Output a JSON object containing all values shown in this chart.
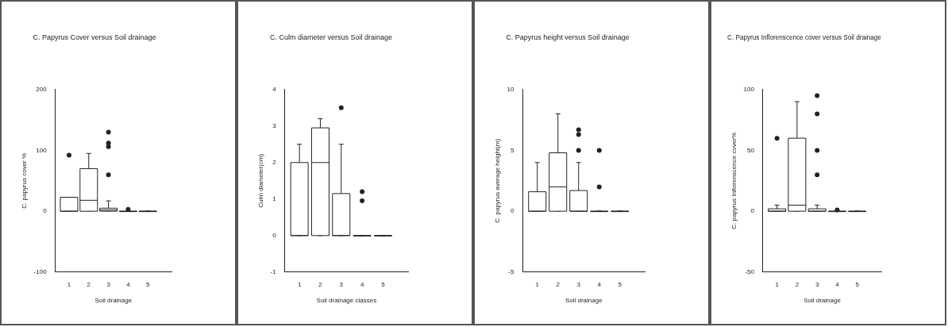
{
  "chart_data": [
    {
      "type": "box",
      "title": "C. Papyrus Cover versus Soil drainage",
      "xlabel": "Soil drainage",
      "ylabel": "C. papyrus cover %",
      "categories": [
        "1",
        "2",
        "3",
        "4",
        "5"
      ],
      "ylim": [
        -100,
        200
      ],
      "yticks": [
        -100,
        0,
        100,
        200
      ],
      "boxes": [
        {
          "low": 0,
          "q1": 0,
          "median": 0,
          "q3": 23,
          "high": 23,
          "outliers": [
            92
          ]
        },
        {
          "low": 0,
          "q1": 0,
          "median": 18,
          "q3": 70,
          "high": 95
        },
        {
          "low": 0,
          "q1": 0,
          "median": 2,
          "q3": 5,
          "high": 17,
          "outliers": [
            60,
            106,
            112,
            130
          ]
        },
        {
          "low": 0,
          "q1": 0,
          "median": 0,
          "q3": 0,
          "high": 0,
          "outliers": [
            3
          ]
        },
        {
          "low": 0,
          "q1": 0,
          "median": 0,
          "q3": 0,
          "high": 0
        }
      ]
    },
    {
      "type": "box",
      "title": "C. Culm diameter versus Soil drainage",
      "xlabel": "Soil drainage classes",
      "ylabel": "Culm diameter(cm)",
      "categories": [
        "1",
        "2",
        "3",
        "4",
        "5"
      ],
      "ylim": [
        -1,
        4
      ],
      "yticks": [
        -1,
        0,
        1,
        2,
        3,
        4
      ],
      "boxes": [
        {
          "low": 0,
          "q1": 0,
          "median": 0,
          "q3": 2,
          "high": 2.5
        },
        {
          "low": 0,
          "q1": 0,
          "median": 2,
          "q3": 2.95,
          "high": 3.2
        },
        {
          "low": 0,
          "q1": 0,
          "median": 0,
          "q3": 1.15,
          "high": 2.5,
          "outliers": [
            3.5
          ]
        },
        {
          "low": 0,
          "q1": 0,
          "median": 0,
          "q3": 0,
          "high": 0,
          "outliers": [
            0.95,
            1.2
          ]
        },
        {
          "low": 0,
          "q1": 0,
          "median": 0,
          "q3": 0,
          "high": 0
        }
      ]
    },
    {
      "type": "box",
      "title": "C. Papyrus height versus Soil drainage",
      "xlabel": "Soil drainage",
      "ylabel": "C. papyrus average height(m)",
      "categories": [
        "1",
        "2",
        "3",
        "4",
        "5"
      ],
      "ylim": [
        -5,
        10
      ],
      "yticks": [
        -5,
        0,
        5,
        10
      ],
      "boxes": [
        {
          "low": 0,
          "q1": 0,
          "median": 0,
          "q3": 1.6,
          "high": 4
        },
        {
          "low": 0,
          "q1": 0,
          "median": 2,
          "q3": 4.8,
          "high": 8
        },
        {
          "low": 0,
          "q1": 0,
          "median": 0,
          "q3": 1.7,
          "high": 4,
          "outliers": [
            5,
            6.3,
            6.7
          ]
        },
        {
          "low": 0,
          "q1": 0,
          "median": 0,
          "q3": 0,
          "high": 0,
          "outliers": [
            2,
            5
          ]
        },
        {
          "low": 0,
          "q1": 0,
          "median": 0,
          "q3": 0,
          "high": 0
        }
      ]
    },
    {
      "type": "box",
      "title": "C. Papyrus Inflorenscence cover versus Soil drainage",
      "xlabel": "Soil drainage",
      "ylabel": "C. papyrus Inflorenscence cover%",
      "categories": [
        "1",
        "2",
        "3",
        "4",
        "5"
      ],
      "ylim": [
        -50,
        100
      ],
      "yticks": [
        -50,
        0,
        50,
        100
      ],
      "boxes": [
        {
          "low": 0,
          "q1": 0,
          "median": 0,
          "q3": 2,
          "high": 5,
          "outliers": [
            60
          ]
        },
        {
          "low": 0,
          "q1": 0,
          "median": 5,
          "q3": 60,
          "high": 90
        },
        {
          "low": 0,
          "q1": 0,
          "median": 0,
          "q3": 2,
          "high": 5,
          "outliers": [
            30,
            50,
            80,
            95
          ]
        },
        {
          "low": 0,
          "q1": 0,
          "median": 0,
          "q3": 0,
          "high": 0,
          "outliers": [
            1
          ]
        },
        {
          "low": 0,
          "q1": 0,
          "median": 0,
          "q3": 0,
          "high": 0
        }
      ]
    }
  ]
}
